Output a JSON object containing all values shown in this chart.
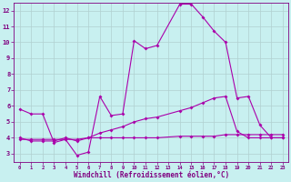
{
  "background_color": "#c8f0f0",
  "grid_color": "#b0d0d0",
  "line_color": "#aa00aa",
  "xlabel": "Windchill (Refroidissement éolien,°C)",
  "xlabel_color": "#800080",
  "tick_color": "#800080",
  "xlim": [
    -0.5,
    23.5
  ],
  "ylim": [
    2.5,
    12.5
  ],
  "yticks": [
    3,
    4,
    5,
    6,
    7,
    8,
    9,
    10,
    11,
    12
  ],
  "line1_x": [
    0,
    1,
    2,
    3,
    4,
    5,
    6,
    7,
    8,
    9,
    10,
    11,
    12,
    14,
    15,
    16,
    17,
    18,
    19,
    20,
    21,
    22,
    23
  ],
  "line1_y": [
    5.8,
    5.5,
    5.5,
    3.7,
    3.9,
    2.9,
    3.1,
    6.6,
    5.4,
    5.5,
    10.1,
    9.6,
    9.8,
    12.4,
    12.4,
    11.6,
    10.7,
    10.0,
    6.5,
    6.6,
    4.8,
    4.0,
    4.0
  ],
  "line2_x": [
    0,
    1,
    2,
    3,
    4,
    5,
    6,
    7,
    8,
    9,
    10,
    11,
    12,
    14,
    15,
    16,
    17,
    18,
    19,
    20,
    21,
    22,
    23
  ],
  "line2_y": [
    4.0,
    3.8,
    3.8,
    3.8,
    4.0,
    3.8,
    4.0,
    4.3,
    4.5,
    4.7,
    5.0,
    5.2,
    5.3,
    5.7,
    5.9,
    6.2,
    6.5,
    6.6,
    4.4,
    4.0,
    4.0,
    4.0,
    4.0
  ],
  "line3_x": [
    0,
    1,
    2,
    3,
    4,
    5,
    6,
    7,
    8,
    9,
    10,
    11,
    12,
    14,
    15,
    16,
    17,
    18,
    19,
    20,
    21,
    22,
    23
  ],
  "line3_y": [
    3.9,
    3.9,
    3.9,
    3.9,
    3.9,
    3.9,
    4.0,
    4.0,
    4.0,
    4.0,
    4.0,
    4.0,
    4.0,
    4.1,
    4.1,
    4.1,
    4.1,
    4.2,
    4.2,
    4.2,
    4.2,
    4.2,
    4.2
  ]
}
